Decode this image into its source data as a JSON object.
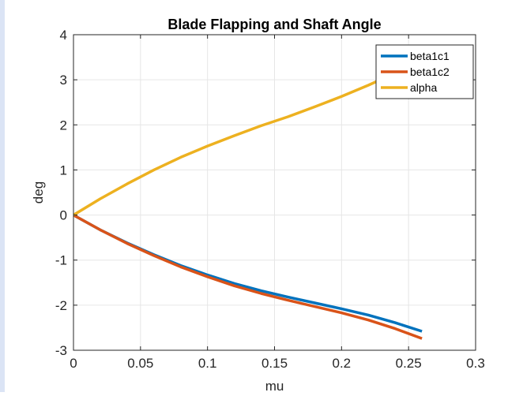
{
  "chart_data": {
    "type": "line",
    "title": "Blade Flapping and Shaft Angle",
    "xlabel": "mu",
    "ylabel": "deg",
    "xlim": [
      0,
      0.3
    ],
    "ylim": [
      -3,
      4
    ],
    "xticks": [
      0,
      0.05,
      0.1,
      0.15,
      0.2,
      0.25,
      0.3
    ],
    "xtick_labels": [
      "0",
      "0.05",
      "0.1",
      "0.15",
      "0.2",
      "0.25",
      "0.3"
    ],
    "yticks": [
      -3,
      -2,
      -1,
      0,
      1,
      2,
      3,
      4
    ],
    "ytick_labels": [
      "-3",
      "-2",
      "-1",
      "0",
      "1",
      "2",
      "3",
      "4"
    ],
    "grid": true,
    "legend_position": "top-right",
    "series": [
      {
        "name": "beta1c1",
        "color": "#0072BD",
        "x": [
          0,
          0.02,
          0.04,
          0.06,
          0.08,
          0.1,
          0.12,
          0.14,
          0.16,
          0.18,
          0.2,
          0.22,
          0.24,
          0.26
        ],
        "y": [
          0,
          -0.33,
          -0.62,
          -0.88,
          -1.12,
          -1.33,
          -1.52,
          -1.68,
          -1.82,
          -1.95,
          -2.08,
          -2.22,
          -2.39,
          -2.58
        ]
      },
      {
        "name": "beta1c2",
        "color": "#D95319",
        "x": [
          0,
          0.02,
          0.04,
          0.06,
          0.08,
          0.1,
          0.12,
          0.14,
          0.16,
          0.18,
          0.2,
          0.22,
          0.24,
          0.26
        ],
        "y": [
          0,
          -0.33,
          -0.63,
          -0.9,
          -1.15,
          -1.37,
          -1.57,
          -1.74,
          -1.89,
          -2.03,
          -2.17,
          -2.33,
          -2.52,
          -2.74
        ]
      },
      {
        "name": "alpha",
        "color": "#EDB120",
        "x": [
          0,
          0.02,
          0.04,
          0.06,
          0.08,
          0.1,
          0.12,
          0.14,
          0.16,
          0.18,
          0.2,
          0.22,
          0.24,
          0.26
        ],
        "y": [
          0,
          0.36,
          0.69,
          1.0,
          1.28,
          1.53,
          1.76,
          1.98,
          2.18,
          2.4,
          2.63,
          2.88,
          3.15,
          3.42
        ]
      }
    ]
  }
}
